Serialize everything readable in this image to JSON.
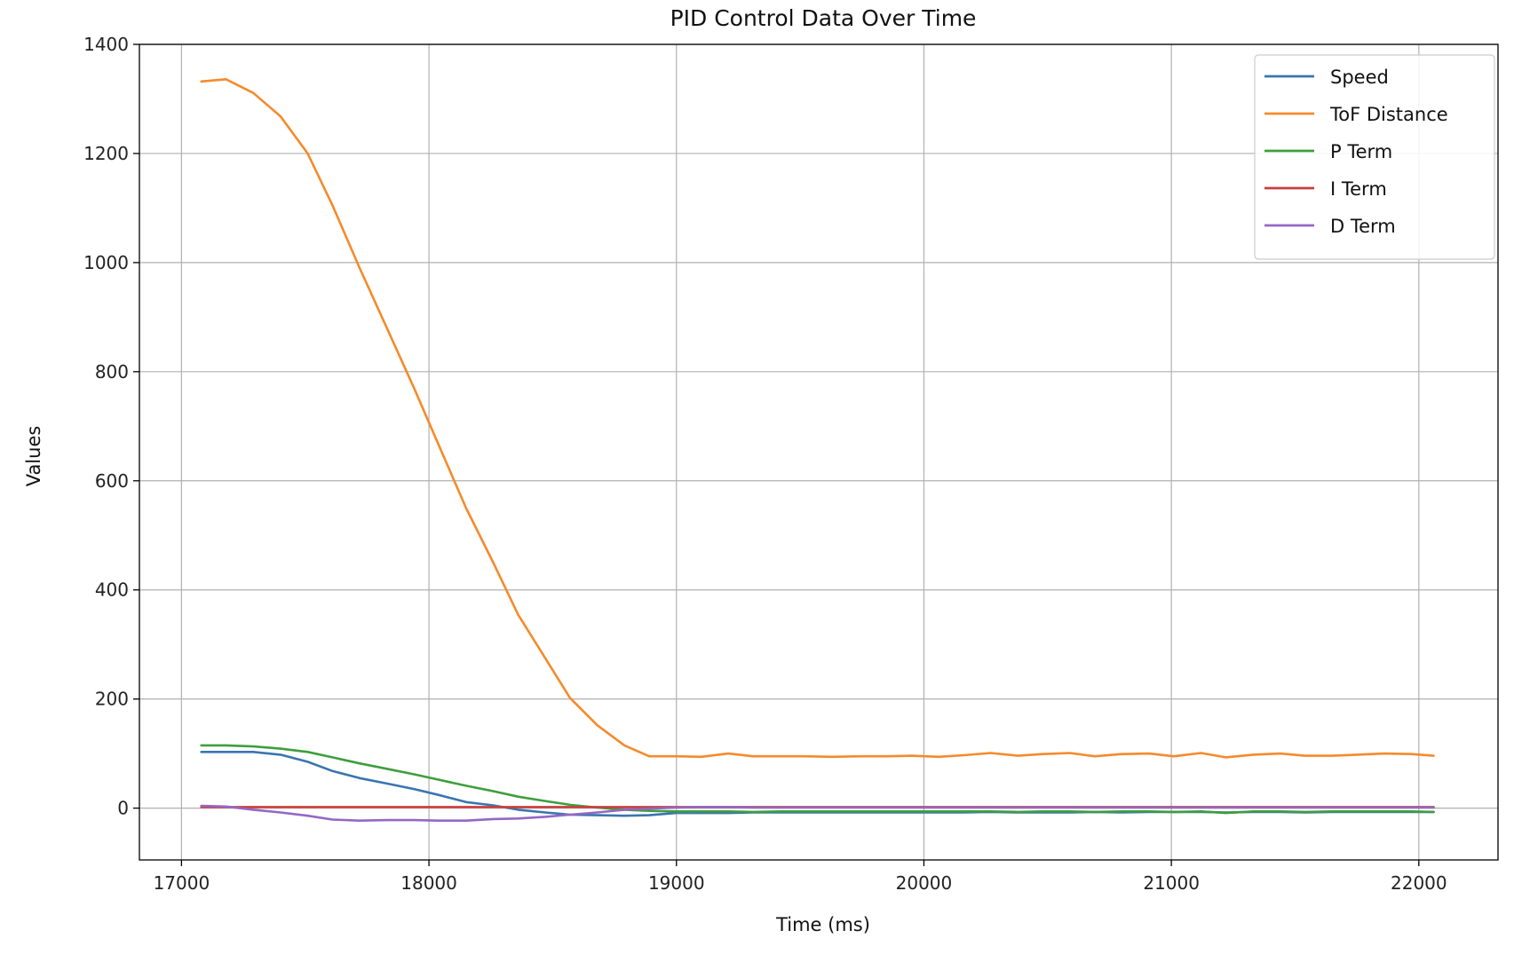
{
  "chart_data": {
    "type": "line",
    "title": "PID Control Data Over Time",
    "xlabel": "Time (ms)",
    "ylabel": "Values",
    "xlim": [
      16830,
      22320
    ],
    "ylim": [
      -95,
      1400
    ],
    "xticks": [
      17000,
      18000,
      19000,
      20000,
      21000,
      22000
    ],
    "yticks": [
      0,
      200,
      400,
      600,
      800,
      1000,
      1200,
      1400
    ],
    "grid": true,
    "legend_position": "top-right",
    "x": [
      17080,
      17180,
      17290,
      17400,
      17510,
      17610,
      17720,
      17830,
      17940,
      18040,
      18150,
      18260,
      18360,
      18470,
      18570,
      18680,
      18790,
      18890,
      19000,
      19100,
      19210,
      19310,
      19420,
      19520,
      19630,
      19740,
      19850,
      19950,
      20060,
      20160,
      20270,
      20380,
      20480,
      20590,
      20690,
      20800,
      20910,
      21010,
      21120,
      21220,
      21330,
      21440,
      21540,
      21650,
      21750,
      21860,
      21970,
      22060
    ],
    "series": [
      {
        "name": "Speed",
        "color": "#3a75b0",
        "values": [
          103,
          103,
          103,
          98,
          85,
          68,
          55,
          45,
          35,
          24,
          11,
          5,
          -3,
          -8,
          -12,
          -13,
          -14,
          -13,
          -9,
          -9,
          -9,
          -8,
          -8,
          -8,
          -8,
          -8,
          -8,
          -8,
          -8,
          -8,
          -7,
          -8,
          -8,
          -8,
          -7,
          -8,
          -7,
          -7,
          -7,
          -8,
          -7,
          -7,
          -8,
          -7,
          -7,
          -7,
          -7,
          -7
        ]
      },
      {
        "name": "ToF Distance",
        "color": "#f58a2b",
        "values": [
          1332,
          1336,
          1311,
          1268,
          1200,
          1105,
          990,
          880,
          770,
          665,
          550,
          450,
          355,
          275,
          202,
          152,
          115,
          95,
          95,
          94,
          100,
          95,
          95,
          95,
          94,
          95,
          95,
          96,
          94,
          97,
          101,
          96,
          99,
          101,
          95,
          99,
          100,
          95,
          101,
          93,
          98,
          100,
          96,
          96,
          98,
          100,
          99,
          96
        ]
      },
      {
        "name": "P Term",
        "color": "#3e9e3e",
        "values": [
          115,
          115,
          113,
          109,
          103,
          93,
          82,
          72,
          62,
          52,
          41,
          31,
          21,
          13,
          6,
          1,
          -3,
          -5,
          -6,
          -6,
          -6,
          -7,
          -6,
          -6,
          -6,
          -6,
          -6,
          -6,
          -6,
          -6,
          -6,
          -7,
          -6,
          -6,
          -7,
          -6,
          -6,
          -7,
          -6,
          -9,
          -6,
          -6,
          -7,
          -6,
          -6,
          -6,
          -6,
          -7
        ]
      },
      {
        "name": "I Term",
        "color": "#c93f3a",
        "values": [
          2,
          2,
          2,
          2,
          2,
          2,
          2,
          2,
          2,
          2,
          2,
          2,
          2,
          2,
          2,
          2,
          2,
          2,
          2,
          2,
          2,
          2,
          2,
          2,
          2,
          2,
          2,
          2,
          2,
          2,
          2,
          2,
          2,
          2,
          2,
          2,
          2,
          2,
          2,
          2,
          2,
          2,
          2,
          2,
          2,
          2,
          2,
          2
        ]
      },
      {
        "name": "D Term",
        "color": "#9467c4",
        "values": [
          4,
          3,
          -3,
          -8,
          -14,
          -21,
          -23,
          -22,
          -22,
          -23,
          -23,
          -20,
          -19,
          -16,
          -12,
          -8,
          -3,
          -1,
          1,
          2,
          2,
          1,
          1,
          1,
          1,
          1,
          1,
          1,
          1,
          1,
          1,
          1,
          1,
          1,
          1,
          1,
          1,
          1,
          1,
          1,
          1,
          1,
          1,
          1,
          1,
          1,
          1,
          1
        ]
      }
    ]
  }
}
